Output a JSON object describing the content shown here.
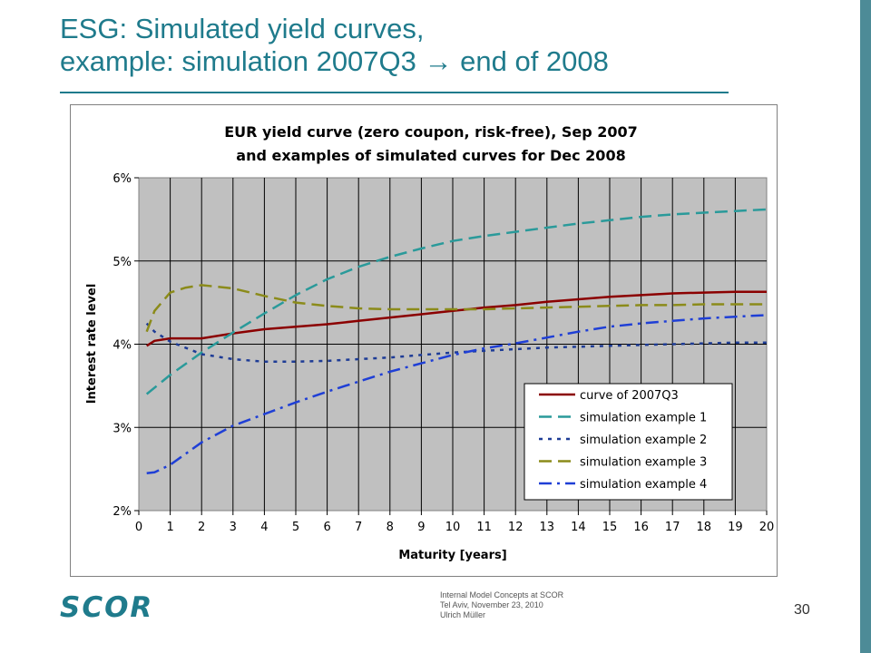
{
  "slide": {
    "title_line1": "ESG: Simulated yield curves,",
    "title_line2": "example: simulation 2007Q3 → end of 2008",
    "page_number": "30",
    "footer": {
      "line1": "Internal Model Concepts at SCOR",
      "line2": "Tel Aviv, November 23, 2010",
      "line3": "Ulrich Müller"
    },
    "logo_text": "SCOR",
    "colors": {
      "accent": "#1f7b8c",
      "band": "#4d8b97",
      "plot_bg": "#c0c0c0"
    }
  },
  "chart_data": {
    "type": "line",
    "title_line1": "EUR yield curve (zero coupon, risk-free), Sep 2007",
    "title_line2": "and examples of simulated curves for Dec 2008",
    "xlabel": "Maturity [years]",
    "ylabel": "Interest rate level",
    "xlim": [
      0,
      20
    ],
    "ylim": [
      0.02,
      0.06
    ],
    "x_ticks": [
      "0",
      "1",
      "2",
      "3",
      "4",
      "5",
      "6",
      "7",
      "8",
      "9",
      "10",
      "11",
      "12",
      "13",
      "14",
      "15",
      "16",
      "17",
      "18",
      "19",
      "20"
    ],
    "y_ticks": [
      "2%",
      "3%",
      "4%",
      "5%",
      "6%"
    ],
    "grid": "vertical and horizontal",
    "legend_position": "bottom-right",
    "series": [
      {
        "name": "curve of 2007Q3",
        "color": "#8b0000",
        "dash": "solid",
        "points": [
          [
            0.25,
            0.0398
          ],
          [
            0.5,
            0.0404
          ],
          [
            1,
            0.0407
          ],
          [
            2,
            0.0407
          ],
          [
            3,
            0.0413
          ],
          [
            4,
            0.0418
          ],
          [
            5,
            0.0421
          ],
          [
            6,
            0.0424
          ],
          [
            7,
            0.0428
          ],
          [
            8,
            0.0432
          ],
          [
            9,
            0.0436
          ],
          [
            10,
            0.044
          ],
          [
            11,
            0.0444
          ],
          [
            12,
            0.0447
          ],
          [
            13,
            0.0451
          ],
          [
            14,
            0.0454
          ],
          [
            15,
            0.0457
          ],
          [
            16,
            0.0459
          ],
          [
            17,
            0.0461
          ],
          [
            18,
            0.0462
          ],
          [
            19,
            0.0463
          ],
          [
            20,
            0.0463
          ]
        ]
      },
      {
        "name": "simulation example 1",
        "color": "#2a9a9a",
        "dash": "long-dash",
        "points": [
          [
            0.25,
            0.034
          ],
          [
            1,
            0.0363
          ],
          [
            2,
            0.039
          ],
          [
            3,
            0.0414
          ],
          [
            4,
            0.0437
          ],
          [
            5,
            0.0459
          ],
          [
            6,
            0.0478
          ],
          [
            7,
            0.0493
          ],
          [
            8,
            0.0505
          ],
          [
            9,
            0.0515
          ],
          [
            10,
            0.0524
          ],
          [
            11,
            0.053
          ],
          [
            12,
            0.0535
          ],
          [
            13,
            0.054
          ],
          [
            14,
            0.0545
          ],
          [
            15,
            0.0549
          ],
          [
            16,
            0.0553
          ],
          [
            17,
            0.0556
          ],
          [
            18,
            0.0558
          ],
          [
            19,
            0.056
          ],
          [
            20,
            0.0562
          ]
        ]
      },
      {
        "name": "simulation example 2",
        "color": "#1e3c96",
        "dash": "dotted",
        "points": [
          [
            0.25,
            0.0425
          ],
          [
            0.5,
            0.0415
          ],
          [
            1,
            0.0403
          ],
          [
            2,
            0.0388
          ],
          [
            3,
            0.0382
          ],
          [
            4,
            0.0379
          ],
          [
            5,
            0.0379
          ],
          [
            6,
            0.038
          ],
          [
            7,
            0.0382
          ],
          [
            8,
            0.0384
          ],
          [
            9,
            0.0387
          ],
          [
            10,
            0.039
          ],
          [
            11,
            0.0392
          ],
          [
            12,
            0.0394
          ],
          [
            13,
            0.0396
          ],
          [
            14,
            0.0397
          ],
          [
            15,
            0.0398
          ],
          [
            16,
            0.0399
          ],
          [
            17,
            0.04
          ],
          [
            18,
            0.0401
          ],
          [
            19,
            0.0402
          ],
          [
            20,
            0.0402
          ]
        ]
      },
      {
        "name": "simulation example 3",
        "color": "#8b8b1a",
        "dash": "long-dash",
        "points": [
          [
            0.25,
            0.0415
          ],
          [
            0.5,
            0.044
          ],
          [
            1,
            0.0462
          ],
          [
            1.5,
            0.0468
          ],
          [
            2,
            0.0471
          ],
          [
            3,
            0.0467
          ],
          [
            4,
            0.0458
          ],
          [
            5,
            0.045
          ],
          [
            6,
            0.0446
          ],
          [
            7,
            0.0443
          ],
          [
            8,
            0.0442
          ],
          [
            9,
            0.0442
          ],
          [
            10,
            0.0442
          ],
          [
            11,
            0.0442
          ],
          [
            12,
            0.0443
          ],
          [
            13,
            0.0444
          ],
          [
            14,
            0.0445
          ],
          [
            15,
            0.0446
          ],
          [
            16,
            0.0447
          ],
          [
            17,
            0.0447
          ],
          [
            18,
            0.0448
          ],
          [
            19,
            0.0448
          ],
          [
            20,
            0.0448
          ]
        ]
      },
      {
        "name": "simulation example 4",
        "color": "#1f3fd6",
        "dash": "dash-dot",
        "points": [
          [
            0.25,
            0.0245
          ],
          [
            0.5,
            0.0246
          ],
          [
            1,
            0.0255
          ],
          [
            2,
            0.0282
          ],
          [
            3,
            0.0302
          ],
          [
            4,
            0.0316
          ],
          [
            5,
            0.033
          ],
          [
            6,
            0.0343
          ],
          [
            7,
            0.0355
          ],
          [
            8,
            0.0367
          ],
          [
            9,
            0.0377
          ],
          [
            10,
            0.0387
          ],
          [
            11,
            0.0395
          ],
          [
            12,
            0.0401
          ],
          [
            13,
            0.0408
          ],
          [
            14,
            0.0415
          ],
          [
            15,
            0.0421
          ],
          [
            16,
            0.0425
          ],
          [
            17,
            0.0428
          ],
          [
            18,
            0.0431
          ],
          [
            19,
            0.0433
          ],
          [
            20,
            0.0435
          ]
        ]
      }
    ]
  }
}
